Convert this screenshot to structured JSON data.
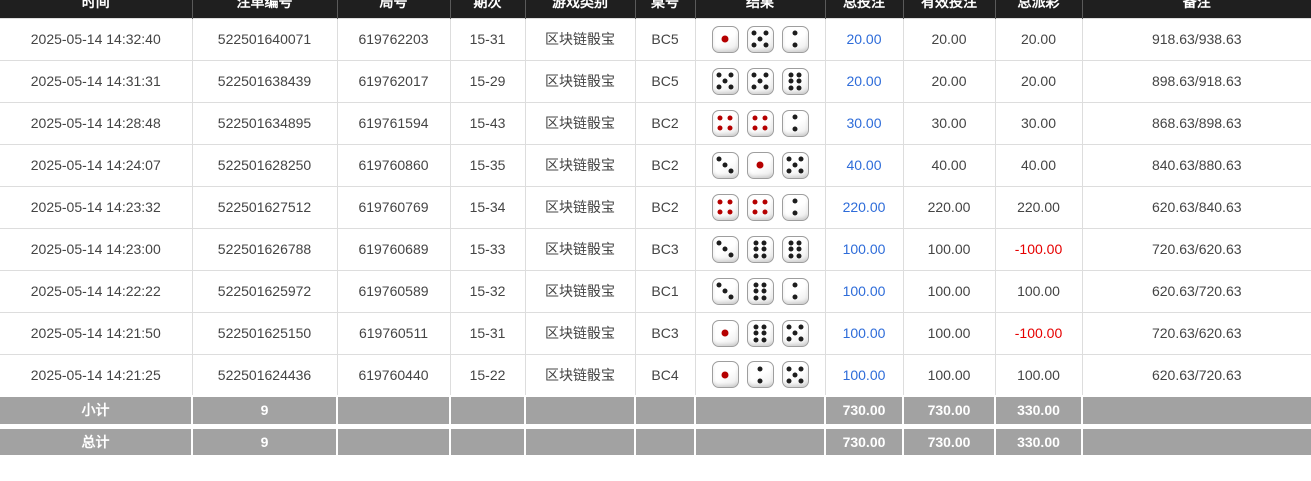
{
  "colors": {
    "header_bg": "#1f1f1f",
    "header_text": "#ffffff",
    "bet_amount_blue": "#2e6cd9",
    "negative_red": "#e60000",
    "summary_bg": "#a2a2a2",
    "dice_pip_black": "#1d1d1d",
    "dice_pip_red": "#b50000"
  },
  "table": {
    "headers": [
      {
        "key": "time",
        "label": "时间"
      },
      {
        "key": "bet_id",
        "label": "注单编号"
      },
      {
        "key": "round_no",
        "label": "局号"
      },
      {
        "key": "period",
        "label": "期次"
      },
      {
        "key": "game_type",
        "label": "游戏类别"
      },
      {
        "key": "table_no",
        "label": "桌号"
      },
      {
        "key": "result",
        "label": "结果"
      },
      {
        "key": "total_bet",
        "label": "总投注"
      },
      {
        "key": "valid_bet",
        "label": "有效投注"
      },
      {
        "key": "payout",
        "label": "总派彩"
      },
      {
        "key": "remark",
        "label": "备注"
      }
    ],
    "rows": [
      {
        "time": "2025-05-14 14:32:40",
        "bet_id": "522501640071",
        "round_no": "619762203",
        "period": "15-31",
        "game_type": "区块链骰宝",
        "table_no": "BC5",
        "dice": [
          1,
          5,
          2
        ],
        "total_bet": "20.00",
        "valid_bet": "20.00",
        "payout": "20.00",
        "remark": "918.63/938.63"
      },
      {
        "time": "2025-05-14 14:31:31",
        "bet_id": "522501638439",
        "round_no": "619762017",
        "period": "15-29",
        "game_type": "区块链骰宝",
        "table_no": "BC5",
        "dice": [
          5,
          5,
          6
        ],
        "total_bet": "20.00",
        "valid_bet": "20.00",
        "payout": "20.00",
        "remark": "898.63/918.63"
      },
      {
        "time": "2025-05-14 14:28:48",
        "bet_id": "522501634895",
        "round_no": "619761594",
        "period": "15-43",
        "game_type": "区块链骰宝",
        "table_no": "BC2",
        "dice": [
          4,
          4,
          2
        ],
        "total_bet": "30.00",
        "valid_bet": "30.00",
        "payout": "30.00",
        "remark": "868.63/898.63"
      },
      {
        "time": "2025-05-14 14:24:07",
        "bet_id": "522501628250",
        "round_no": "619760860",
        "period": "15-35",
        "game_type": "区块链骰宝",
        "table_no": "BC2",
        "dice": [
          3,
          1,
          5
        ],
        "total_bet": "40.00",
        "valid_bet": "40.00",
        "payout": "40.00",
        "remark": "840.63/880.63"
      },
      {
        "time": "2025-05-14 14:23:32",
        "bet_id": "522501627512",
        "round_no": "619760769",
        "period": "15-34",
        "game_type": "区块链骰宝",
        "table_no": "BC2",
        "dice": [
          4,
          4,
          2
        ],
        "total_bet": "220.00",
        "valid_bet": "220.00",
        "payout": "220.00",
        "remark": "620.63/840.63"
      },
      {
        "time": "2025-05-14 14:23:00",
        "bet_id": "522501626788",
        "round_no": "619760689",
        "period": "15-33",
        "game_type": "区块链骰宝",
        "table_no": "BC3",
        "dice": [
          3,
          6,
          6
        ],
        "total_bet": "100.00",
        "valid_bet": "100.00",
        "payout": "-100.00",
        "remark": "720.63/620.63"
      },
      {
        "time": "2025-05-14 14:22:22",
        "bet_id": "522501625972",
        "round_no": "619760589",
        "period": "15-32",
        "game_type": "区块链骰宝",
        "table_no": "BC1",
        "dice": [
          3,
          6,
          2
        ],
        "total_bet": "100.00",
        "valid_bet": "100.00",
        "payout": "100.00",
        "remark": "620.63/720.63"
      },
      {
        "time": "2025-05-14 14:21:50",
        "bet_id": "522501625150",
        "round_no": "619760511",
        "period": "15-31",
        "game_type": "区块链骰宝",
        "table_no": "BC3",
        "dice": [
          1,
          6,
          5
        ],
        "total_bet": "100.00",
        "valid_bet": "100.00",
        "payout": "-100.00",
        "remark": "720.63/620.63"
      },
      {
        "time": "2025-05-14 14:21:25",
        "bet_id": "522501624436",
        "round_no": "619760440",
        "period": "15-22",
        "game_type": "区块链骰宝",
        "table_no": "BC4",
        "dice": [
          1,
          2,
          5
        ],
        "total_bet": "100.00",
        "valid_bet": "100.00",
        "payout": "100.00",
        "remark": "620.63/720.63"
      }
    ],
    "subtotal": {
      "label": "小计",
      "count": "9",
      "total_bet": "730.00",
      "valid_bet": "730.00",
      "payout": "330.00"
    },
    "grand_total": {
      "label": "总计",
      "count": "9",
      "total_bet": "730.00",
      "valid_bet": "730.00",
      "payout": "330.00"
    }
  }
}
